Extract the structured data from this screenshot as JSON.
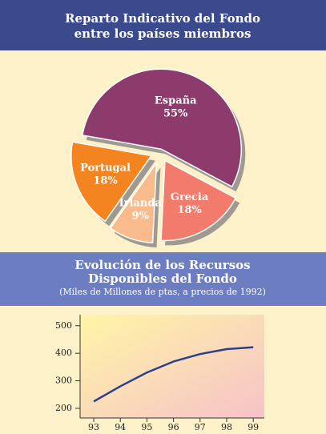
{
  "chart_data": [
    {
      "type": "pie",
      "title": [
        "Reparto Indicativo del Fondo",
        "entre los países miembros"
      ],
      "categories": [
        "España",
        "Grecia",
        "Irlanda",
        "Portugal"
      ],
      "values": [
        55,
        18,
        9,
        18
      ],
      "value_labels": [
        "55%",
        "18%",
        "9%",
        "18%"
      ],
      "colors": [
        "#8c3b6c",
        "#f27b6b",
        "#f9bb8c",
        "#f3841f"
      ]
    },
    {
      "type": "line",
      "title": [
        "Evolución de los Recursos",
        "Disponibles del Fondo"
      ],
      "subtitle": "(Miles de Millones de ptas, a precios de 1992)",
      "categories": [
        "93",
        "94",
        "95",
        "96",
        "97",
        "98",
        "99"
      ],
      "values": [
        225,
        280,
        330,
        370,
        397,
        415,
        422
      ],
      "color": "#2b3f8c",
      "ylim": [
        165,
        540
      ],
      "yticks": [
        200,
        300,
        400,
        500
      ]
    }
  ]
}
